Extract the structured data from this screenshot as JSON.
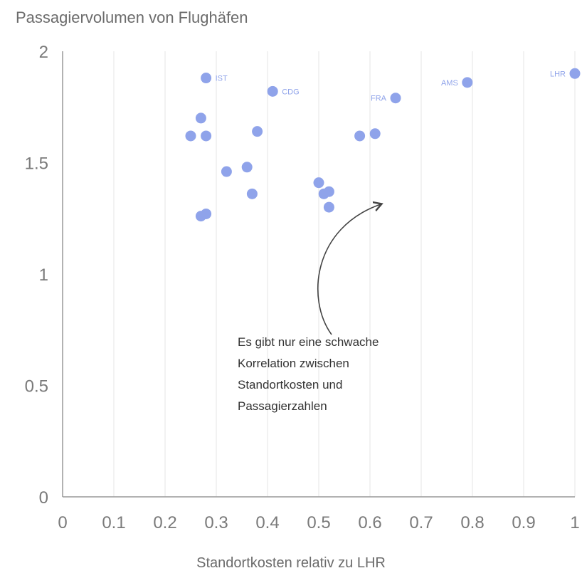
{
  "chart_data": {
    "type": "scatter",
    "title": "Passagiervolumen von Flughäfen",
    "xlabel": "Standortkosten relativ zu LHR",
    "ylabel": "",
    "xlim": [
      0,
      1
    ],
    "ylim": [
      0,
      2
    ],
    "x_ticks": [
      "0",
      "0.1",
      "0.2",
      "0.3",
      "0.4",
      "0.5",
      "0.6",
      "0.7",
      "0.8",
      "0.9",
      "1"
    ],
    "y_ticks": [
      "0",
      "0.5",
      "1",
      "1.5",
      "2"
    ],
    "grid": "vertical",
    "point_color": "#8fa3ea",
    "points": [
      {
        "x": 0.28,
        "y": 1.88,
        "label": "IST"
      },
      {
        "x": 0.41,
        "y": 1.82,
        "label": "CDG"
      },
      {
        "x": 0.65,
        "y": 1.79,
        "label": "FRA"
      },
      {
        "x": 0.79,
        "y": 1.86,
        "label": "AMS"
      },
      {
        "x": 1.0,
        "y": 1.9,
        "label": "LHR"
      },
      {
        "x": 0.27,
        "y": 1.7
      },
      {
        "x": 0.25,
        "y": 1.62
      },
      {
        "x": 0.28,
        "y": 1.62
      },
      {
        "x": 0.38,
        "y": 1.64
      },
      {
        "x": 0.58,
        "y": 1.62
      },
      {
        "x": 0.61,
        "y": 1.63
      },
      {
        "x": 0.32,
        "y": 1.46
      },
      {
        "x": 0.36,
        "y": 1.48
      },
      {
        "x": 0.37,
        "y": 1.36
      },
      {
        "x": 0.5,
        "y": 1.41
      },
      {
        "x": 0.51,
        "y": 1.36
      },
      {
        "x": 0.52,
        "y": 1.37
      },
      {
        "x": 0.52,
        "y": 1.3
      },
      {
        "x": 0.27,
        "y": 1.26
      },
      {
        "x": 0.28,
        "y": 1.27
      }
    ],
    "annotation": {
      "lines": [
        "Es gibt nur eine schwache",
        "Korrelation zwischen",
        "Standortkosten und",
        "Passagierzahlen"
      ]
    }
  }
}
